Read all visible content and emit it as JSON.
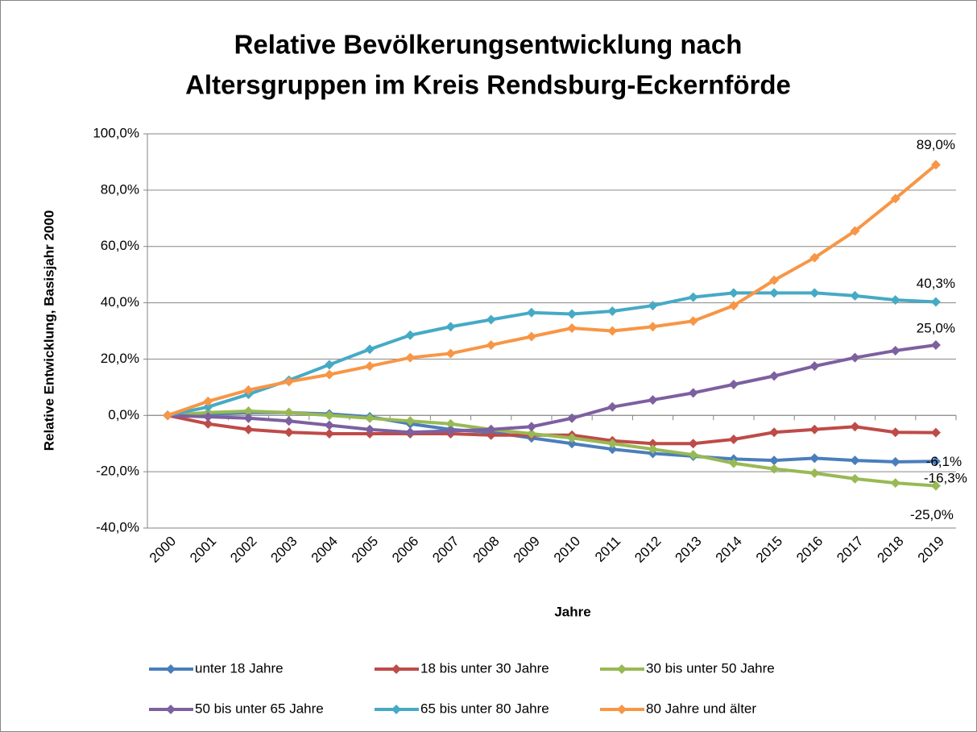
{
  "chart_data": {
    "type": "line",
    "title": [
      "Relative Bevölkerungsentwicklung nach",
      "Altersgruppen im Kreis Rendsburg-Eckernförde"
    ],
    "x_label": "Jahre",
    "y_label": "Relative Entwicklung, Basisjahr 2000",
    "categories": [
      "2000",
      "2001",
      "2002",
      "2003",
      "2004",
      "2005",
      "2006",
      "2007",
      "2008",
      "2009",
      "2010",
      "2011",
      "2012",
      "2013",
      "2014",
      "2015",
      "2016",
      "2017",
      "2018",
      "2019"
    ],
    "series": [
      {
        "name": "unter 18 Jahre",
        "color": "#4a7ebb",
        "values": [
          0,
          0.5,
          1,
          1,
          0.5,
          -0.5,
          -3,
          -5,
          -6,
          -8,
          -10,
          -12,
          -13.5,
          -14.5,
          -15.5,
          -16,
          -15.2,
          -16,
          -16.5,
          -16.3
        ],
        "value_labels": [
          null,
          null,
          null,
          null,
          null,
          null,
          null,
          null,
          null,
          null,
          null,
          null,
          null,
          null,
          null,
          null,
          null,
          null,
          null,
          "-16,3%"
        ]
      },
      {
        "name": "18 bis unter 30 Jahre",
        "color": "#be4b48",
        "values": [
          0,
          -3,
          -5,
          -6,
          -6.5,
          -6.5,
          -6.5,
          -6.5,
          -7,
          -7,
          -7,
          -9,
          -10,
          -10,
          -8.5,
          -6,
          -5,
          -4,
          -6,
          -6.1
        ],
        "value_labels": [
          null,
          null,
          null,
          null,
          null,
          null,
          null,
          null,
          null,
          null,
          null,
          null,
          null,
          null,
          null,
          null,
          null,
          null,
          null,
          "-6,1%"
        ]
      },
      {
        "name": "30 bis unter 50 Jahre",
        "color": "#98b954",
        "values": [
          0,
          1,
          1.5,
          1,
          0,
          -1,
          -2,
          -3,
          -5,
          -6.5,
          -8,
          -10,
          -12,
          -14,
          -17,
          -19,
          -20.5,
          -22.5,
          -24,
          -25.0
        ],
        "value_labels": [
          null,
          null,
          null,
          null,
          null,
          null,
          null,
          null,
          null,
          null,
          null,
          null,
          null,
          null,
          null,
          null,
          null,
          null,
          null,
          "-25,0%"
        ]
      },
      {
        "name": "50 bis unter 65 Jahre",
        "color": "#7d60a0",
        "values": [
          0,
          -0.5,
          -1,
          -2,
          -3.5,
          -5,
          -6,
          -5.5,
          -5,
          -4,
          -1,
          3,
          5.5,
          8,
          11,
          14,
          17.5,
          20.5,
          23,
          25.0
        ],
        "value_labels": [
          null,
          null,
          null,
          null,
          null,
          null,
          null,
          null,
          null,
          null,
          null,
          null,
          null,
          null,
          null,
          null,
          null,
          null,
          null,
          "25,0%"
        ]
      },
      {
        "name": "65 bis unter 80 Jahre",
        "color": "#46aac5",
        "values": [
          0,
          3,
          7.5,
          12.5,
          18,
          23.5,
          28.5,
          31.5,
          34,
          36.5,
          36,
          37,
          39,
          42,
          43.5,
          43.5,
          43.5,
          42.5,
          41,
          40.3
        ],
        "value_labels": [
          null,
          null,
          null,
          null,
          null,
          null,
          null,
          null,
          null,
          null,
          null,
          null,
          null,
          null,
          null,
          null,
          null,
          null,
          null,
          "40,3%"
        ]
      },
      {
        "name": "80 Jahre und älter",
        "color": "#f79646",
        "values": [
          0,
          5,
          9,
          12,
          14.5,
          17.5,
          20.5,
          22,
          25,
          28,
          31,
          30,
          31.5,
          33.5,
          39,
          48,
          56,
          65.5,
          77,
          89.0
        ],
        "value_labels": [
          null,
          null,
          null,
          null,
          null,
          null,
          null,
          null,
          null,
          null,
          null,
          null,
          null,
          null,
          null,
          null,
          null,
          null,
          null,
          "89,0%"
        ]
      }
    ],
    "ylim": [
      -40,
      100
    ],
    "yticks": [
      {
        "value": -40,
        "label": "-40,0%"
      },
      {
        "value": -20,
        "label": "-20,0%"
      },
      {
        "value": 0,
        "label": "0,0%"
      },
      {
        "value": 20,
        "label": "20,0%"
      },
      {
        "value": 40,
        "label": "40,0%"
      },
      {
        "value": 60,
        "label": "60,0%"
      },
      {
        "value": 80,
        "label": "80,0%"
      },
      {
        "value": 100,
        "label": "100,0%"
      }
    ],
    "grid": true,
    "legend": "bottom"
  }
}
